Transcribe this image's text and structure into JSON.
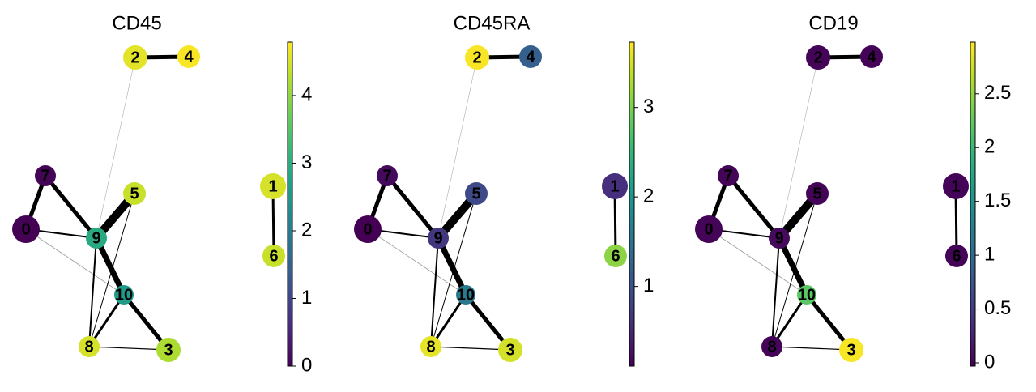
{
  "chart_data": [
    {
      "type": "graph",
      "title": "CD45",
      "colormap": "viridis",
      "nodes": [
        "0",
        "1",
        "2",
        "3",
        "4",
        "5",
        "6",
        "7",
        "8",
        "9",
        "10"
      ],
      "values": [
        0.02,
        4.5,
        4.6,
        4.2,
        4.75,
        4.4,
        4.4,
        0.05,
        4.5,
        2.9,
        2.6
      ],
      "ylim": [
        0,
        4.79
      ],
      "yticks": [
        0,
        1,
        2,
        3,
        4
      ]
    },
    {
      "type": "graph",
      "title": "CD45RA",
      "colormap": "viridis",
      "nodes": [
        "0",
        "1",
        "2",
        "3",
        "4",
        "5",
        "6",
        "7",
        "8",
        "9",
        "10"
      ],
      "values": [
        0.11,
        0.6,
        3.7,
        3.5,
        1.2,
        0.9,
        3.1,
        0.2,
        3.6,
        0.7,
        1.6
      ],
      "ylim": [
        0.11,
        3.73
      ],
      "yticks": [
        1,
        2,
        3
      ]
    },
    {
      "type": "graph",
      "title": "CD19",
      "colormap": "viridis",
      "nodes": [
        "0",
        "1",
        "2",
        "3",
        "4",
        "5",
        "6",
        "7",
        "8",
        "9",
        "10"
      ],
      "values": [
        0,
        0,
        0,
        2.95,
        0,
        0,
        0,
        0,
        0,
        0.05,
        2.2
      ],
      "ylim": [
        -0.03,
        2.98
      ],
      "yticks": [
        0,
        0.5,
        1,
        1.5,
        2,
        2.5
      ]
    }
  ]
}
